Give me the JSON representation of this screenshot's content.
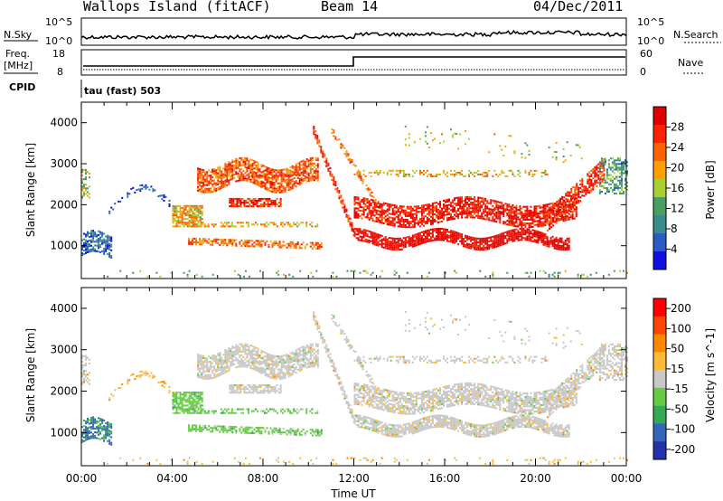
{
  "header": {
    "station": "Wallops Island (fitACF)",
    "beam": "Beam 14",
    "date": "04/Dec/2011"
  },
  "panels": {
    "nsky_label": "N.Sky",
    "nsky_ticks": [
      "10^5",
      "10^0"
    ],
    "nsky_right_ticks": [
      "10^5",
      "10^0"
    ],
    "nsearch_label": "N.Search",
    "freq_label": "Freq.",
    "freq_unit": "[MHz]",
    "freq_ticks": [
      "18",
      "8"
    ],
    "nave_label": "Nave",
    "nave_ticks": [
      "60",
      "0"
    ],
    "cpid_label": "CPID",
    "cpid_value": "tau (fast) 503"
  },
  "colors": {
    "power_scale": [
      "#1010e0",
      "#2a5cc8",
      "#3a8c8c",
      "#4aa060",
      "#a8d030",
      "#ffa000",
      "#ff6000",
      "#ff2000",
      "#e00000"
    ],
    "velocity_scale": [
      "#ff0000",
      "#ff4400",
      "#ff8800",
      "#ffbb33",
      "#c8c8c8",
      "#66cc44",
      "#33aa55",
      "#3366bb",
      "#2233aa"
    ]
  },
  "chart_data": [
    {
      "type": "heatmap",
      "name": "power",
      "ylabel": "Slant Range [km]",
      "xlabel": "",
      "x_ticks": [
        "00:00",
        "04:00",
        "08:00",
        "12:00",
        "16:00",
        "20:00",
        "00:00"
      ],
      "y_ticks": [
        1000,
        2000,
        3000,
        4000
      ],
      "ylim": [
        200,
        4500
      ],
      "xlim_hours": [
        0,
        24
      ],
      "colorbar_label": "Power [dB]",
      "colorbar_ticks": [
        4,
        8,
        12,
        16,
        20,
        24,
        28
      ]
    },
    {
      "type": "heatmap",
      "name": "velocity",
      "ylabel": "Slant Range [km]",
      "xlabel": "Time UT",
      "x_ticks": [
        "00:00",
        "04:00",
        "08:00",
        "12:00",
        "16:00",
        "20:00",
        "00:00"
      ],
      "y_ticks": [
        1000,
        2000,
        3000,
        4000
      ],
      "ylim": [
        200,
        4500
      ],
      "xlim_hours": [
        0,
        24
      ],
      "colorbar_label": "Velocity [m s^-1]",
      "colorbar_ticks": [
        200,
        100,
        50,
        15,
        -15,
        -50,
        -100,
        -200
      ]
    }
  ]
}
